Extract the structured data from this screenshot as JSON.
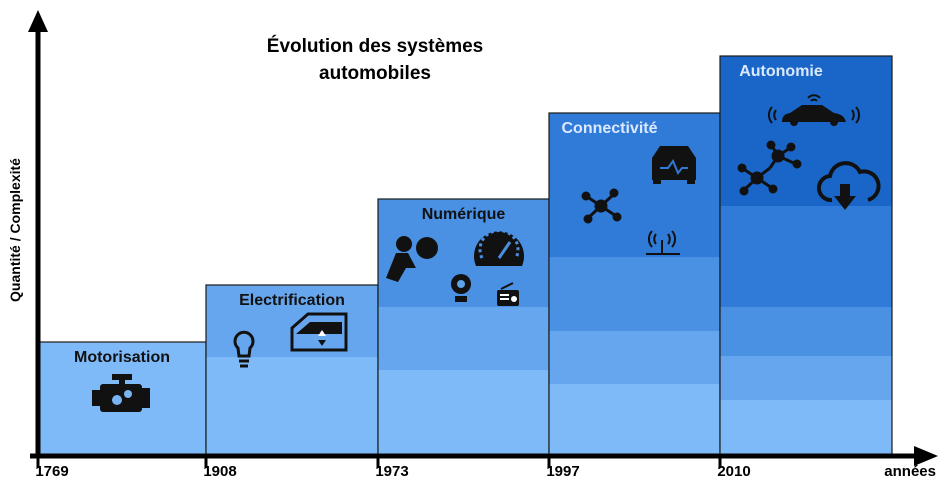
{
  "title": "Évolution des systèmes automobiles",
  "y_axis_label": "Quantité / Complexité",
  "x_axis_label": "années",
  "stages": [
    {
      "name": "Motorisation",
      "year": "1769"
    },
    {
      "name": "Electrification",
      "year": "1908"
    },
    {
      "name": "Numérique",
      "year": "1973"
    },
    {
      "name": "Connectivité",
      "year": "1997"
    },
    {
      "name": "Autonomie",
      "year": "2010"
    }
  ]
}
